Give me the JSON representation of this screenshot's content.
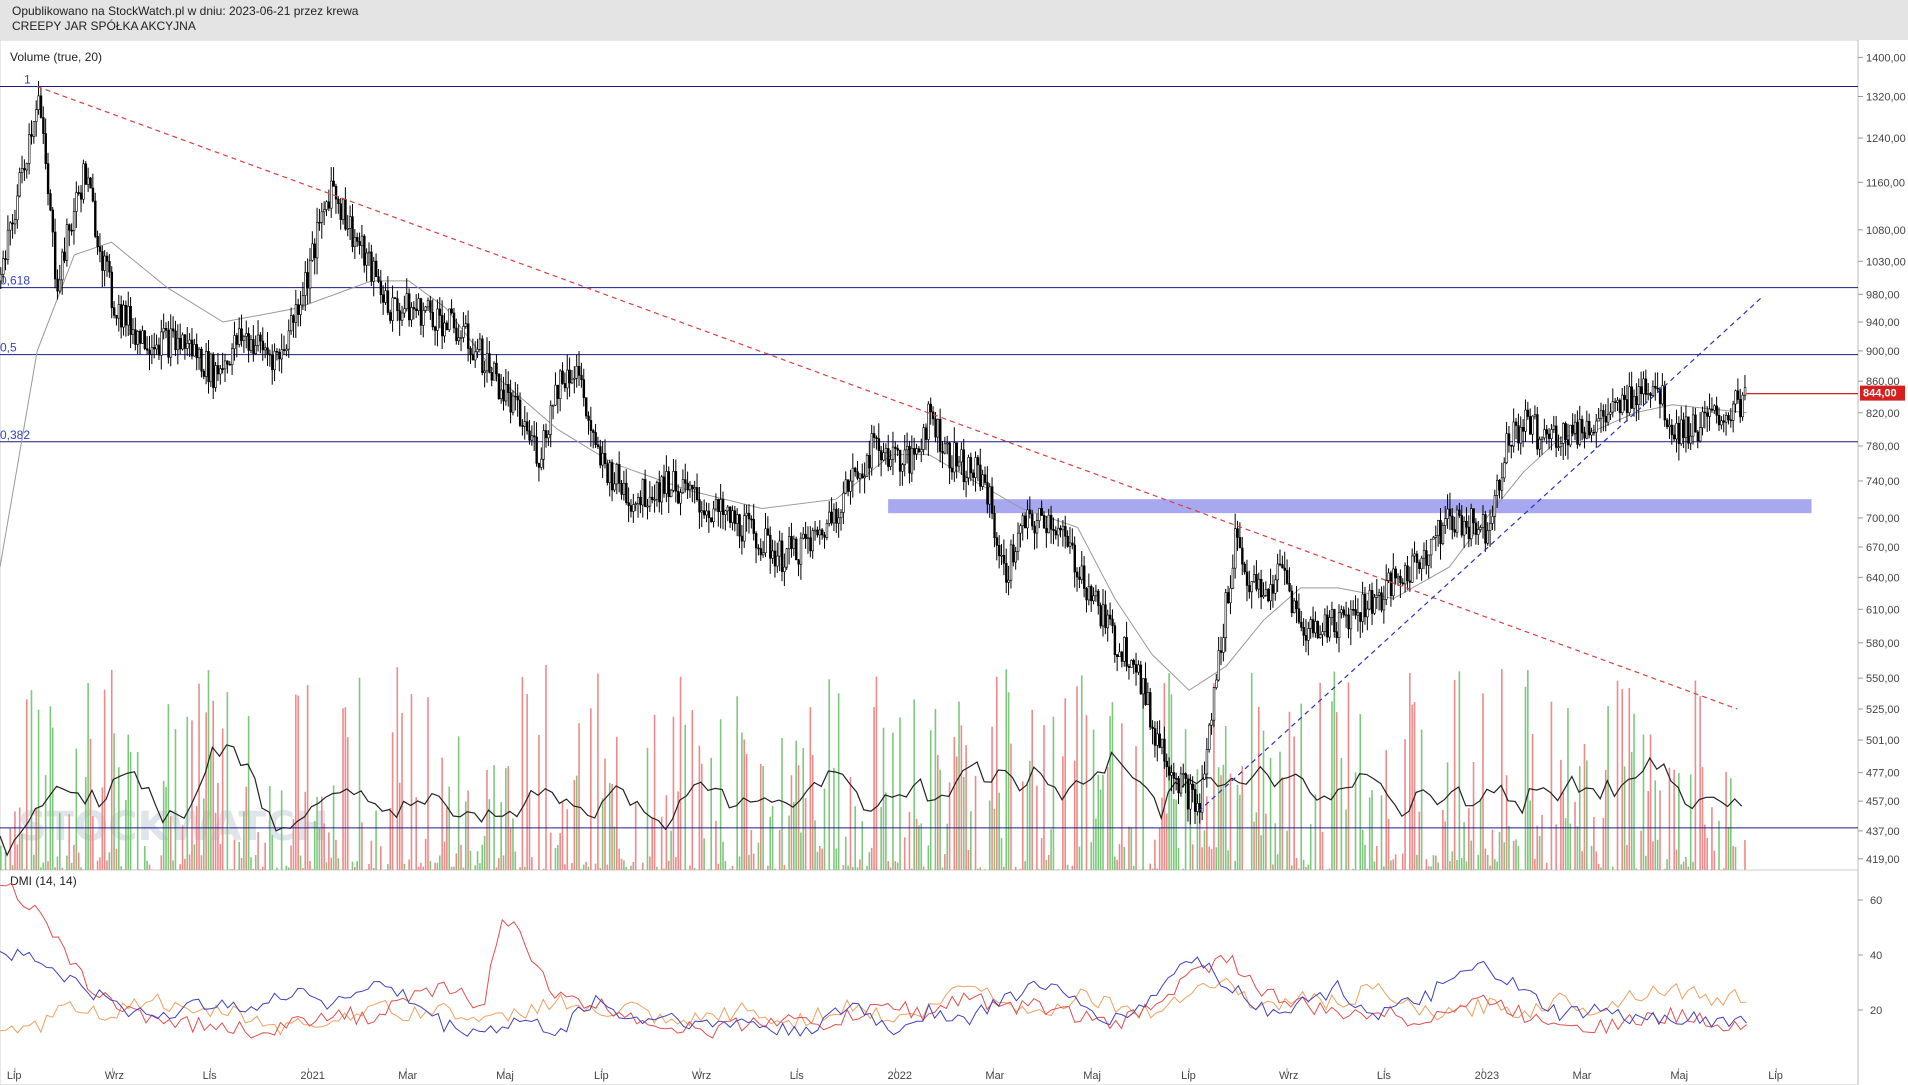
{
  "header": {
    "line1": "Opublikowano na StockWatch.pl w dniu: 2023-06-21 przez krewa",
    "line2": "CREEPY JAR SPÓŁKA AKCYJNA"
  },
  "watermark": "STOCKWATCH",
  "colors": {
    "header_bg": "#e4e4e4",
    "candle": "#000000",
    "sma": "#999999",
    "fib_line": "#1a1a8c",
    "downtrend": "#d94040",
    "uptrend": "#2a33c0",
    "support_zone": "#9999ee",
    "vol_up": "#7ec87e",
    "vol_down": "#ef8a8a",
    "vol_ma": "#222222",
    "price_tag": "#d62020",
    "dmi_plus": "#f0a060",
    "dmi_minus": "#e05050",
    "adx": "#4040c0"
  },
  "chart_data": [
    {
      "type": "candlestick",
      "title": "",
      "x_ticks": [
        "Lip",
        "Wrz",
        "Lis",
        "2021",
        "Mar",
        "Maj",
        "Lip",
        "Wrz",
        "Lis",
        "2022",
        "Mar",
        "Maj",
        "Lip",
        "Wrz",
        "Lis",
        "2023",
        "Mar",
        "Maj",
        "Lip"
      ],
      "y_ticks": [
        "1400,00",
        "1320,00",
        "1240,00",
        "1160,00",
        "1080,00",
        "1030,00",
        "980,00",
        "940,00",
        "900,00",
        "860,00",
        "820,00",
        "780,00",
        "740,00",
        "700,00",
        "670,00",
        "640,00",
        "610,00",
        "580,00",
        "550,00",
        "525,00",
        "501,00",
        "477,00",
        "457,00",
        "437,00",
        "419,00"
      ],
      "y_scale": "log",
      "ylim": [
        412,
        1420
      ],
      "last_price": "844,00",
      "price_path": [
        [
          0,
          1000
        ],
        [
          0.02,
          1330
        ],
        [
          0.03,
          1000
        ],
        [
          0.045,
          1180
        ],
        [
          0.06,
          970
        ],
        [
          0.075,
          920
        ],
        [
          0.1,
          910
        ],
        [
          0.115,
          870
        ],
        [
          0.13,
          920
        ],
        [
          0.15,
          890
        ],
        [
          0.165,
          1010
        ],
        [
          0.178,
          1160
        ],
        [
          0.19,
          1070
        ],
        [
          0.21,
          960
        ],
        [
          0.23,
          955
        ],
        [
          0.245,
          930
        ],
        [
          0.26,
          890
        ],
        [
          0.275,
          830
        ],
        [
          0.29,
          770
        ],
        [
          0.3,
          860
        ],
        [
          0.31,
          880
        ],
        [
          0.32,
          770
        ],
        [
          0.34,
          720
        ],
        [
          0.36,
          740
        ],
        [
          0.38,
          710
        ],
        [
          0.4,
          690
        ],
        [
          0.42,
          660
        ],
        [
          0.44,
          680
        ],
        [
          0.455,
          730
        ],
        [
          0.47,
          780
        ],
        [
          0.49,
          760
        ],
        [
          0.5,
          820
        ],
        [
          0.51,
          770
        ],
        [
          0.53,
          740
        ],
        [
          0.54,
          640
        ],
        [
          0.55,
          690
        ],
        [
          0.565,
          700
        ],
        [
          0.58,
          650
        ],
        [
          0.6,
          580
        ],
        [
          0.61,
          570
        ],
        [
          0.62,
          510
        ],
        [
          0.635,
          470
        ],
        [
          0.645,
          450
        ],
        [
          0.655,
          560
        ],
        [
          0.665,
          690
        ],
        [
          0.67,
          640
        ],
        [
          0.68,
          620
        ],
        [
          0.69,
          650
        ],
        [
          0.7,
          590
        ],
        [
          0.72,
          600
        ],
        [
          0.74,
          620
        ],
        [
          0.76,
          650
        ],
        [
          0.78,
          700
        ],
        [
          0.8,
          690
        ],
        [
          0.81,
          780
        ],
        [
          0.82,
          810
        ],
        [
          0.83,
          790
        ],
        [
          0.85,
          800
        ],
        [
          0.87,
          820
        ],
        [
          0.88,
          850
        ],
        [
          0.89,
          860
        ],
        [
          0.9,
          800
        ],
        [
          0.91,
          800
        ],
        [
          0.93,
          820
        ],
        [
          0.94,
          844
        ]
      ],
      "sma_path": [
        [
          0,
          650
        ],
        [
          0.02,
          900
        ],
        [
          0.04,
          1040
        ],
        [
          0.06,
          1060
        ],
        [
          0.09,
          990
        ],
        [
          0.12,
          940
        ],
        [
          0.16,
          960
        ],
        [
          0.2,
          1000
        ],
        [
          0.22,
          1000
        ],
        [
          0.24,
          960
        ],
        [
          0.27,
          860
        ],
        [
          0.3,
          800
        ],
        [
          0.33,
          760
        ],
        [
          0.37,
          730
        ],
        [
          0.41,
          710
        ],
        [
          0.45,
          720
        ],
        [
          0.48,
          770
        ],
        [
          0.5,
          770
        ],
        [
          0.52,
          745
        ],
        [
          0.55,
          710
        ],
        [
          0.58,
          690
        ],
        [
          0.6,
          620
        ],
        [
          0.62,
          570
        ],
        [
          0.64,
          540
        ],
        [
          0.66,
          560
        ],
        [
          0.68,
          600
        ],
        [
          0.7,
          630
        ],
        [
          0.72,
          630
        ],
        [
          0.75,
          620
        ],
        [
          0.78,
          650
        ],
        [
          0.8,
          700
        ],
        [
          0.82,
          750
        ],
        [
          0.84,
          790
        ],
        [
          0.86,
          800
        ],
        [
          0.88,
          820
        ],
        [
          0.9,
          830
        ],
        [
          0.92,
          825
        ],
        [
          0.94,
          820
        ]
      ],
      "fibonacci": [
        {
          "label": "1",
          "value": 1340
        },
        {
          "label": "0,618",
          "value": 990
        },
        {
          "label": "0,5",
          "value": 895
        },
        {
          "label": "0,382",
          "value": 785
        }
      ],
      "horizontal_support": 439,
      "support_zone": [
        705,
        720
      ],
      "downtrend_line": {
        "from": [
          0.02,
          1340
        ],
        "to": [
          0.935,
          525
        ]
      },
      "uptrend_line": {
        "from": [
          0.645,
          450
        ],
        "to": [
          0.948,
          975
        ]
      },
      "price_marker_line": {
        "x_from": 0.94,
        "x_to": 0.975,
        "value": 844
      }
    },
    {
      "type": "bar",
      "title": "Volume (true, 20)",
      "volume_max_pct": 100
    },
    {
      "type": "line",
      "title": "DMI (14, 14)",
      "y_ticks": [
        "60",
        "40",
        "20"
      ],
      "ylim": [
        0,
        68
      ],
      "series": [
        {
          "values": [
            [
              0,
              10
            ],
            [
              0.02,
              14
            ],
            [
              0.04,
              22
            ],
            [
              0.06,
              18
            ],
            [
              0.08,
              25
            ],
            [
              0.1,
              18
            ],
            [
              0.12,
              20
            ],
            [
              0.15,
              14
            ],
            [
              0.18,
              16
            ],
            [
              0.2,
              22
            ],
            [
              0.22,
              18
            ],
            [
              0.24,
              21
            ],
            [
              0.26,
              15
            ],
            [
              0.28,
              19
            ],
            [
              0.3,
              24
            ],
            [
              0.32,
              18
            ],
            [
              0.34,
              21
            ],
            [
              0.36,
              14
            ],
            [
              0.38,
              17
            ],
            [
              0.4,
              20
            ],
            [
              0.42,
              15
            ],
            [
              0.44,
              18
            ],
            [
              0.46,
              22
            ],
            [
              0.48,
              16
            ],
            [
              0.5,
              20
            ],
            [
              0.52,
              30
            ],
            [
              0.54,
              24
            ],
            [
              0.56,
              18
            ],
            [
              0.58,
              26
            ],
            [
              0.6,
              22
            ],
            [
              0.62,
              18
            ],
            [
              0.64,
              28
            ],
            [
              0.66,
              30
            ],
            [
              0.68,
              20
            ],
            [
              0.7,
              25
            ],
            [
              0.72,
              22
            ],
            [
              0.74,
              28
            ],
            [
              0.76,
              20
            ],
            [
              0.78,
              18
            ],
            [
              0.8,
              22
            ],
            [
              0.82,
              19
            ],
            [
              0.84,
              24
            ],
            [
              0.86,
              20
            ],
            [
              0.88,
              26
            ],
            [
              0.9,
              28
            ],
            [
              0.92,
              24
            ],
            [
              0.94,
              25
            ]
          ]
        },
        {
          "values": [
            [
              0,
              68
            ],
            [
              0.02,
              55
            ],
            [
              0.04,
              35
            ],
            [
              0.06,
              22
            ],
            [
              0.08,
              18
            ],
            [
              0.1,
              15
            ],
            [
              0.12,
              14
            ],
            [
              0.14,
              12
            ],
            [
              0.16,
              15
            ],
            [
              0.18,
              20
            ],
            [
              0.2,
              16
            ],
            [
              0.22,
              24
            ],
            [
              0.24,
              28
            ],
            [
              0.26,
              22
            ],
            [
              0.27,
              52
            ],
            [
              0.28,
              48
            ],
            [
              0.3,
              24
            ],
            [
              0.32,
              22
            ],
            [
              0.34,
              18
            ],
            [
              0.36,
              14
            ],
            [
              0.38,
              12
            ],
            [
              0.4,
              15
            ],
            [
              0.42,
              17
            ],
            [
              0.44,
              14
            ],
            [
              0.46,
              18
            ],
            [
              0.48,
              22
            ],
            [
              0.5,
              18
            ],
            [
              0.52,
              26
            ],
            [
              0.54,
              20
            ],
            [
              0.56,
              22
            ],
            [
              0.58,
              18
            ],
            [
              0.6,
              14
            ],
            [
              0.62,
              22
            ],
            [
              0.64,
              32
            ],
            [
              0.66,
              40
            ],
            [
              0.68,
              26
            ],
            [
              0.7,
              22
            ],
            [
              0.72,
              18
            ],
            [
              0.74,
              20
            ],
            [
              0.76,
              16
            ],
            [
              0.78,
              20
            ],
            [
              0.8,
              24
            ],
            [
              0.82,
              18
            ],
            [
              0.84,
              16
            ],
            [
              0.86,
              14
            ],
            [
              0.88,
              16
            ],
            [
              0.9,
              18
            ],
            [
              0.92,
              16
            ],
            [
              0.94,
              14
            ]
          ]
        },
        {
          "values": [
            [
              0,
              42
            ],
            [
              0.02,
              38
            ],
            [
              0.04,
              30
            ],
            [
              0.06,
              22
            ],
            [
              0.08,
              18
            ],
            [
              0.1,
              20
            ],
            [
              0.12,
              24
            ],
            [
              0.14,
              20
            ],
            [
              0.16,
              28
            ],
            [
              0.18,
              22
            ],
            [
              0.2,
              30
            ],
            [
              0.22,
              24
            ],
            [
              0.24,
              14
            ],
            [
              0.26,
              12
            ],
            [
              0.28,
              16
            ],
            [
              0.3,
              12
            ],
            [
              0.32,
              24
            ],
            [
              0.34,
              16
            ],
            [
              0.36,
              18
            ],
            [
              0.38,
              14
            ],
            [
              0.4,
              16
            ],
            [
              0.42,
              12
            ],
            [
              0.44,
              14
            ],
            [
              0.46,
              22
            ],
            [
              0.48,
              12
            ],
            [
              0.5,
              20
            ],
            [
              0.52,
              16
            ],
            [
              0.54,
              24
            ],
            [
              0.56,
              30
            ],
            [
              0.58,
              22
            ],
            [
              0.6,
              16
            ],
            [
              0.62,
              24
            ],
            [
              0.64,
              40
            ],
            [
              0.66,
              30
            ],
            [
              0.68,
              20
            ],
            [
              0.7,
              22
            ],
            [
              0.72,
              28
            ],
            [
              0.74,
              18
            ],
            [
              0.76,
              22
            ],
            [
              0.78,
              30
            ],
            [
              0.8,
              36
            ],
            [
              0.82,
              26
            ],
            [
              0.84,
              18
            ],
            [
              0.86,
              20
            ],
            [
              0.88,
              16
            ],
            [
              0.9,
              18
            ],
            [
              0.92,
              16
            ],
            [
              0.94,
              16
            ]
          ]
        }
      ]
    }
  ]
}
